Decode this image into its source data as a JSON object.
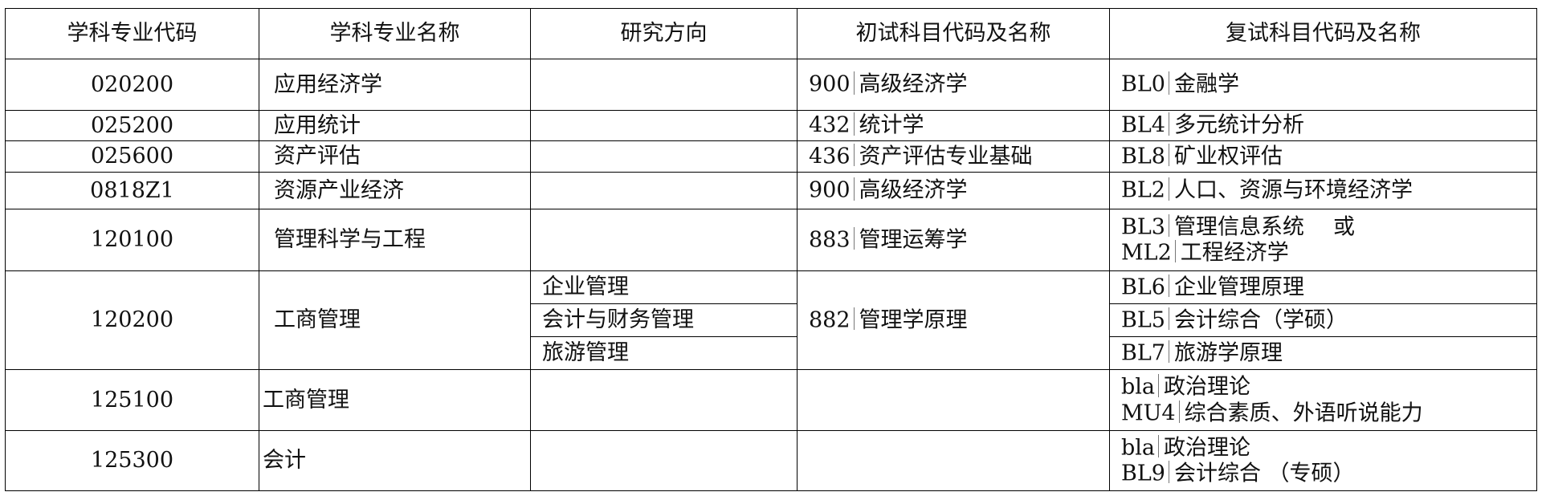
{
  "table": {
    "header": [
      "学科专业代码",
      "学科专业名称",
      "研究方向",
      "初试科目代码及名称",
      "复试科目代码及名称"
    ],
    "rows": [
      {
        "code": "020200",
        "name": "应用经济学",
        "directions": [],
        "exam1": [
          {
            "code": "900",
            "name": "高级经济学"
          }
        ],
        "exam2": [
          {
            "code": "BL0",
            "name": "金融学"
          }
        ]
      },
      {
        "code": "025200",
        "name": "应用统计",
        "directions": [],
        "exam1": [
          {
            "code": "432",
            "name": "统计学"
          }
        ],
        "exam2": [
          {
            "code": "BL4",
            "name": "多元统计分析"
          }
        ]
      },
      {
        "code": "025600",
        "name": "资产评估",
        "directions": [],
        "exam1": [
          {
            "code": "436",
            "name": "资产评估专业基础"
          }
        ],
        "exam2": [
          {
            "code": "BL8",
            "name": "矿业权评估"
          }
        ]
      },
      {
        "code": "0818Z1",
        "name": "资源产业经济",
        "directions": [],
        "exam1": [
          {
            "code": "900",
            "name": "高级经济学"
          }
        ],
        "exam2": [
          {
            "code": "BL2",
            "name": "人口、资源与环境经济学"
          }
        ]
      },
      {
        "code": "120100",
        "name": "管理科学与工程",
        "directions": [],
        "exam1": [
          {
            "code": "883",
            "name": "管理运筹学"
          }
        ],
        "exam2": [
          {
            "code": "BL3",
            "name": "管理信息系统",
            "note": "或"
          },
          {
            "code": "ML2",
            "name": "工程经济学"
          }
        ]
      },
      {
        "code": "120200",
        "name": "工商管理",
        "directions": [
          "企业管理",
          "会计与财务管理",
          "旅游管理"
        ],
        "exam1": [
          {
            "code": "882",
            "name": "管理学原理"
          }
        ],
        "exam2": [
          {
            "code": "BL6",
            "name": "企业管理原理"
          },
          {
            "code": "BL5",
            "name": "会计综合（学硕）"
          },
          {
            "code": "BL7",
            "name": "旅游学原理"
          }
        ]
      },
      {
        "code": "125100",
        "name": "工商管理",
        "directions": [],
        "exam1": [],
        "exam2": [
          {
            "code": "bla",
            "name": "政治理论"
          },
          {
            "code": "MU4",
            "name": "综合素质、外语听说能力"
          }
        ]
      },
      {
        "code": "125300",
        "name": "会计",
        "directions": [],
        "exam1": [],
        "exam2": [
          {
            "code": "bla",
            "name": "政治理论"
          },
          {
            "code": "BL9",
            "name": "会计综合 （专硕）"
          }
        ]
      }
    ]
  }
}
